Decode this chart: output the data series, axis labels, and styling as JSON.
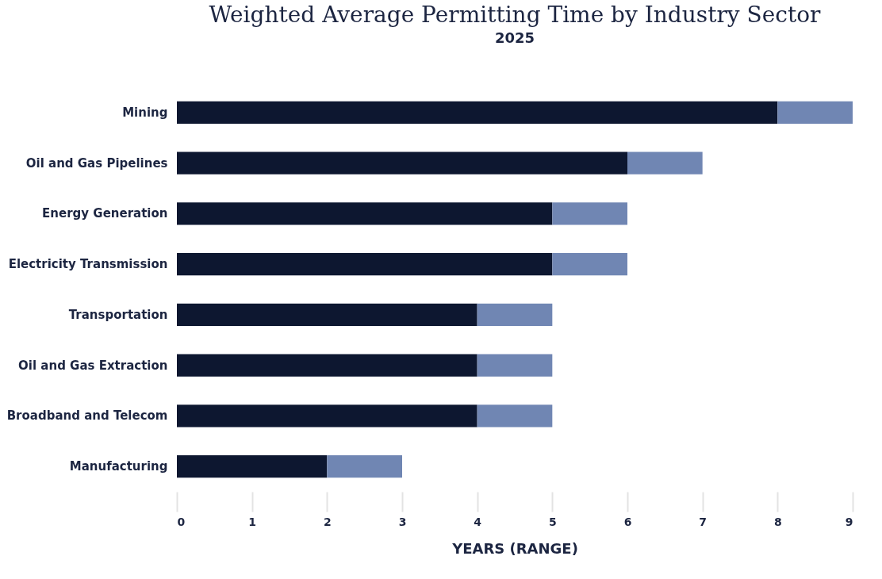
{
  "chart_data": {
    "type": "bar",
    "orientation": "horizontal",
    "stacked": true,
    "title": "Weighted Average Permitting Time by Industry Sector",
    "subtitle": "2025",
    "xlabel": "YEARS (RANGE)",
    "categories": [
      "Mining",
      "Oil and Gas Pipelines",
      "Energy Generation",
      "Electricity Transmission",
      "Transportation",
      "Oil and Gas Extraction",
      "Broadband and Telecom",
      "Manufacturing"
    ],
    "series": [
      {
        "color": "#0d1730",
        "values": [
          8,
          6,
          5,
          5,
          4,
          4,
          4,
          2
        ]
      },
      {
        "color": "#7086b3",
        "values": [
          1,
          1,
          1,
          1,
          1,
          1,
          1,
          1
        ]
      }
    ],
    "xlim": [
      0,
      9
    ],
    "xticks": [
      0,
      1,
      2,
      3,
      4,
      5,
      6,
      7,
      8,
      9
    ],
    "grid": false,
    "legend": false
  }
}
